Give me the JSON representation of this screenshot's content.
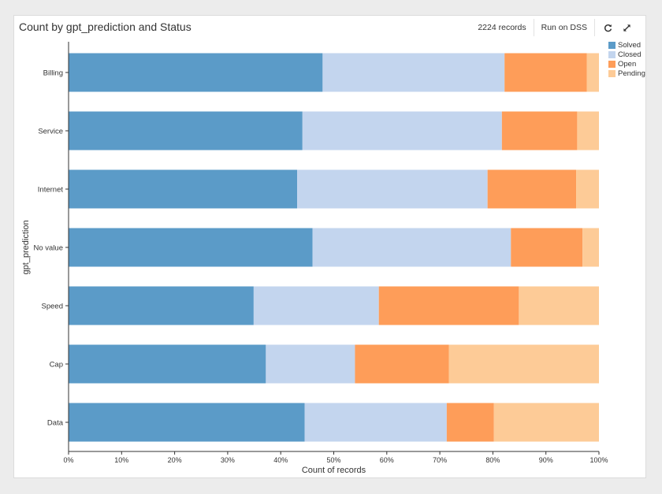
{
  "header": {
    "title": "Count by gpt_prediction and Status",
    "records": "2224 records",
    "run_label": "Run on DSS"
  },
  "icons": {
    "refresh": "refresh-icon",
    "expand": "expand-icon"
  },
  "chart_data": {
    "type": "bar",
    "orientation": "horizontal",
    "stacked": "normalized",
    "title": "Count by gpt_prediction and Status",
    "xlabel": "Count of records",
    "ylabel": "gpt_prediction",
    "xlim": [
      0,
      1
    ],
    "x_ticks": [
      "0%",
      "10%",
      "20%",
      "30%",
      "40%",
      "50%",
      "60%",
      "70%",
      "80%",
      "90%",
      "100%"
    ],
    "categories": [
      "Billing",
      "Service",
      "Internet",
      "No value",
      "Speed",
      "Cap",
      "Data"
    ],
    "legend_position": "top-right",
    "series": [
      {
        "name": "Solved",
        "color": "#5b9bc8",
        "values": [
          0.479,
          0.441,
          0.431,
          0.46,
          0.349,
          0.372,
          0.445
        ]
      },
      {
        "name": "Closed",
        "color": "#c3d5ee",
        "values": [
          0.343,
          0.376,
          0.359,
          0.374,
          0.236,
          0.168,
          0.268
        ]
      },
      {
        "name": "Open",
        "color": "#fe9d59",
        "values": [
          0.155,
          0.142,
          0.167,
          0.135,
          0.264,
          0.177,
          0.089
        ]
      },
      {
        "name": "Pending",
        "color": "#fdcb97",
        "values": [
          0.023,
          0.041,
          0.043,
          0.031,
          0.151,
          0.283,
          0.198
        ]
      }
    ]
  }
}
